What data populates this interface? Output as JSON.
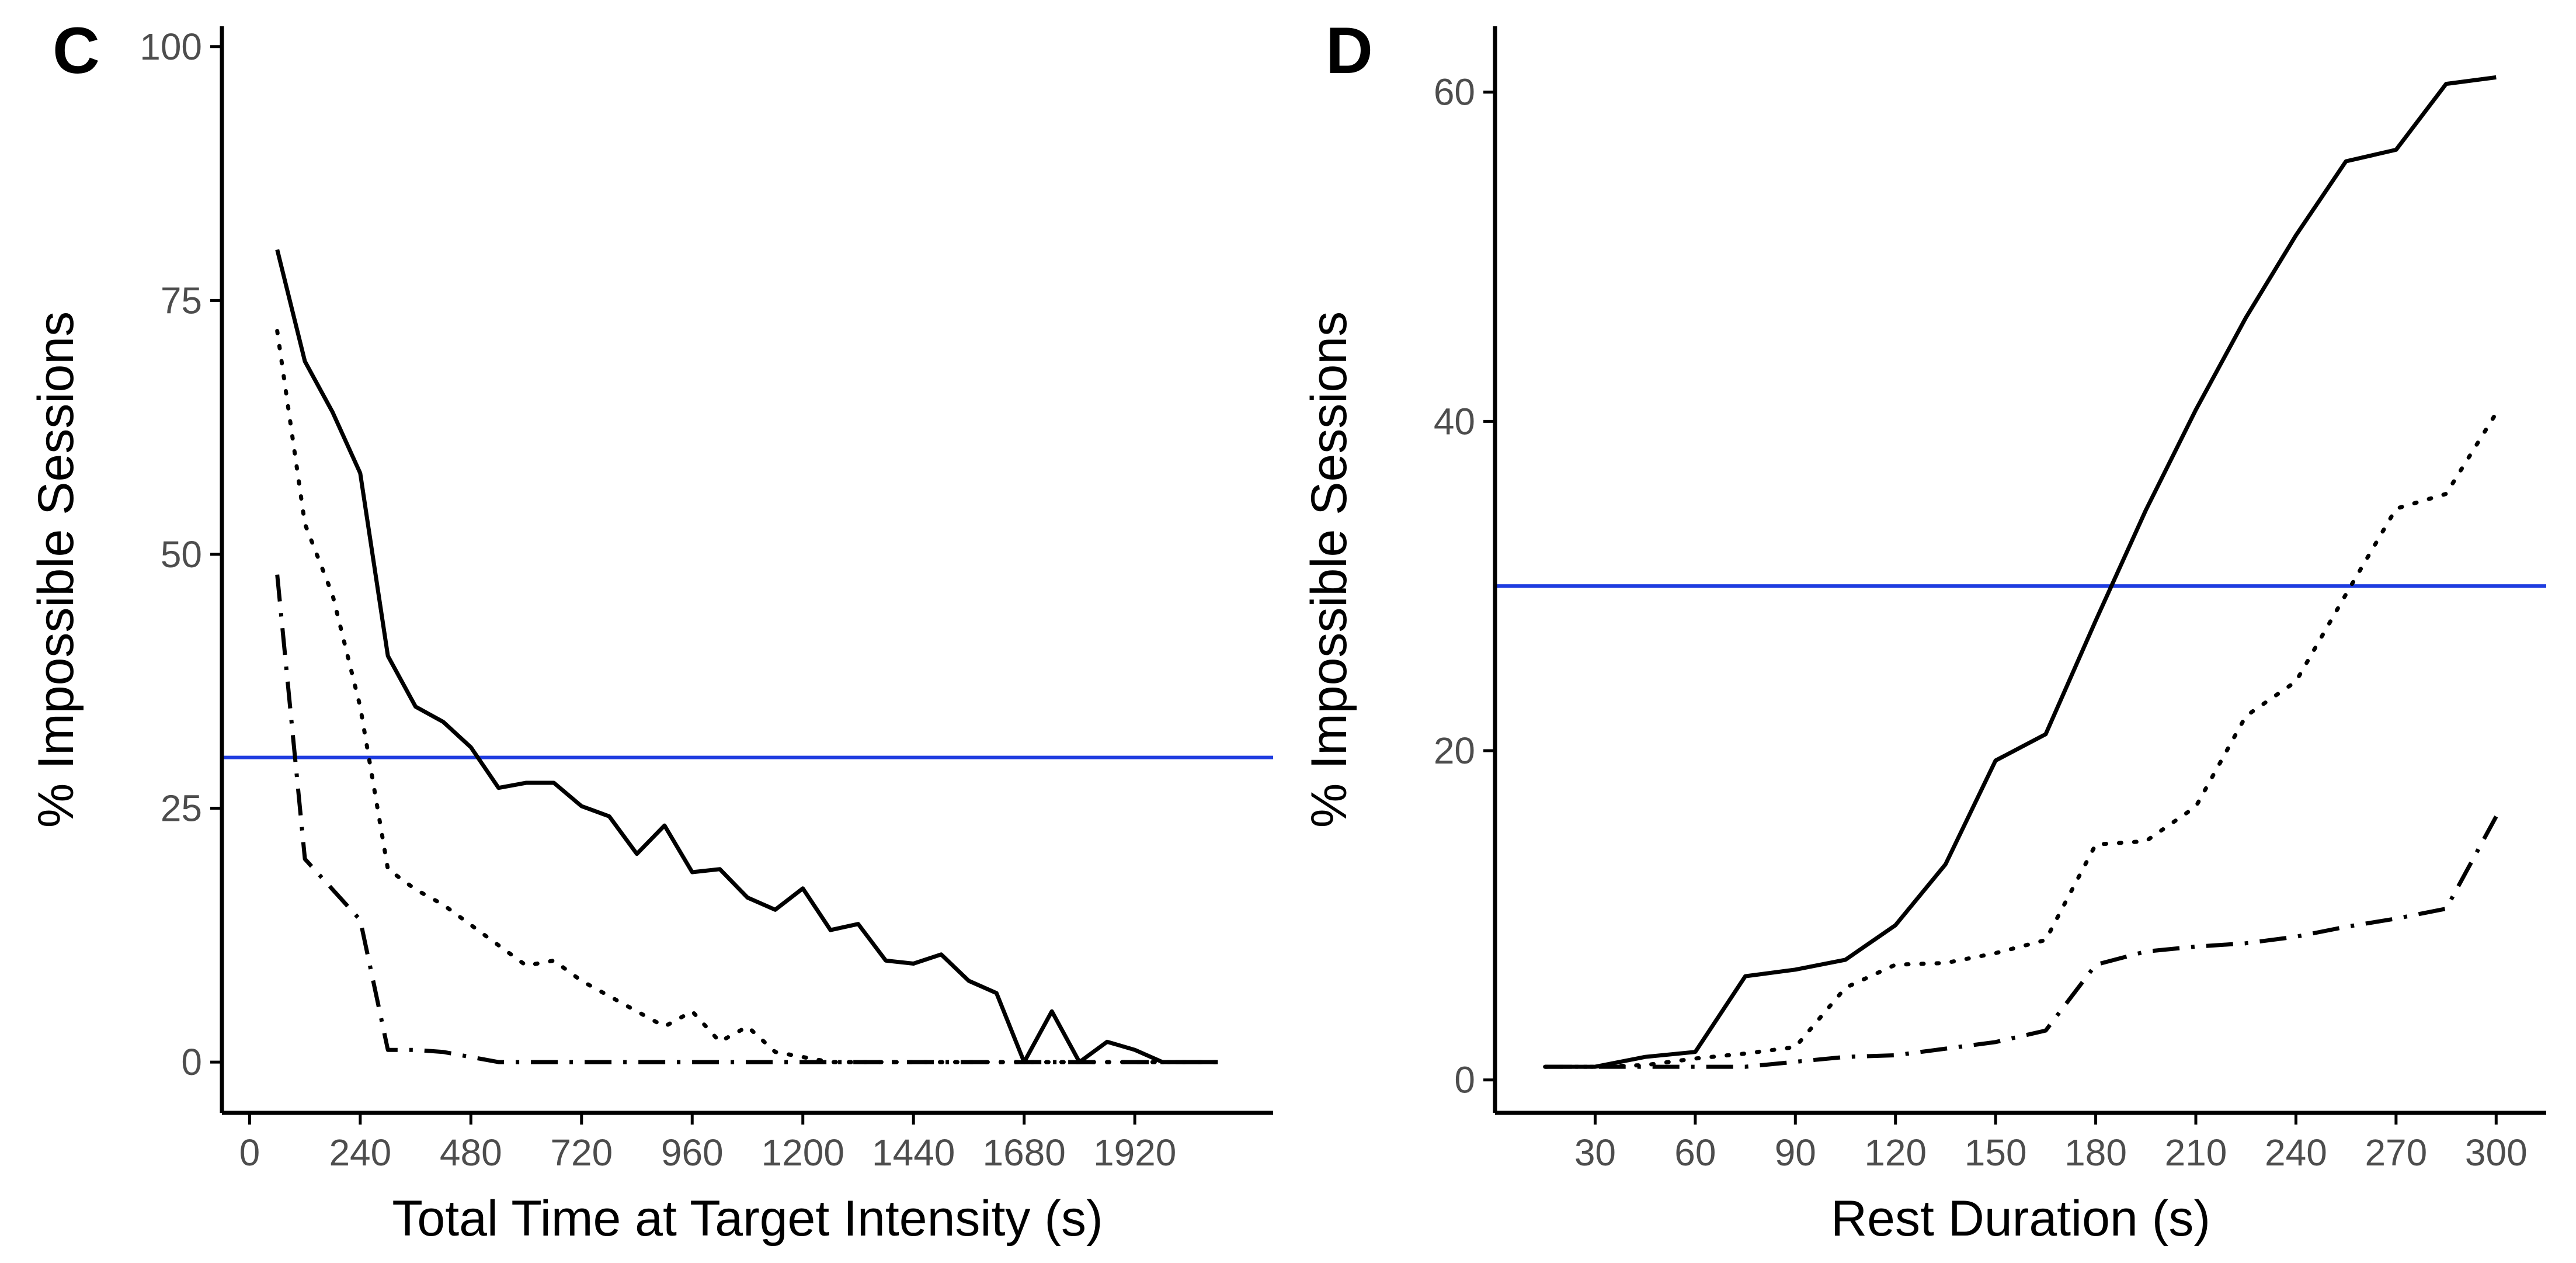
{
  "colors": {
    "reference": "#1f3de0",
    "series": "#000000",
    "tick_text": "#4d4d4d"
  },
  "chart_data": [
    {
      "type": "line",
      "panel": "C",
      "xlabel": "Total Time at Target Intensity (s)",
      "ylabel": "% Impossible Sessions",
      "xlim": [
        -60,
        2220
      ],
      "ylim": [
        -5,
        102
      ],
      "xticks": [
        0,
        240,
        480,
        720,
        960,
        1200,
        1440,
        1680,
        1920
      ],
      "xtick_labels": [
        "0",
        "240",
        "480",
        "720",
        "960",
        "1200",
        "1440",
        "1680",
        "1920"
      ],
      "yticks": [
        0,
        25,
        50,
        75,
        100
      ],
      "ytick_labels": [
        "0",
        "25",
        "50",
        "75",
        "100"
      ],
      "reference_line": {
        "y": 30
      },
      "series": [
        {
          "name": "solid",
          "style": "solid",
          "x": [
            60,
            120,
            180,
            240,
            300,
            360,
            420,
            480,
            540,
            600,
            660,
            720,
            780,
            840,
            900,
            960,
            1020,
            1080,
            1140,
            1200,
            1260,
            1320,
            1380,
            1440,
            1500,
            1560,
            1620,
            1680,
            1740,
            1800,
            1860,
            1920,
            1980,
            2040,
            2100
          ],
          "values": [
            80,
            69,
            64,
            58,
            40,
            35,
            33.5,
            31,
            27,
            27.5,
            27.5,
            25.2,
            24.2,
            20.5,
            23.3,
            18.7,
            19,
            16.2,
            15,
            17.1,
            13,
            13.6,
            10,
            9.7,
            10.6,
            8,
            6.8,
            0,
            5,
            0,
            2,
            1.2,
            0,
            0,
            0
          ]
        },
        {
          "name": "dotted",
          "style": "dotted",
          "x": [
            60,
            120,
            180,
            240,
            300,
            360,
            420,
            480,
            540,
            600,
            660,
            720,
            780,
            840,
            900,
            960,
            1020,
            1080,
            1140,
            1200,
            1260,
            1320,
            1380,
            1440,
            1500,
            1560,
            1620,
            1680,
            1740,
            1800,
            1860,
            1920,
            1980,
            2040,
            2100
          ],
          "values": [
            72,
            53,
            46,
            35,
            19,
            17,
            15.5,
            13.5,
            11.5,
            9.5,
            10,
            8,
            6.5,
            5,
            3.5,
            5,
            2,
            3.5,
            1,
            0.5,
            0,
            0,
            0,
            0,
            0,
            0,
            0,
            0,
            0,
            0,
            0,
            0,
            0,
            0,
            0
          ]
        },
        {
          "name": "dash-dot",
          "style": "dashdot",
          "x": [
            60,
            120,
            180,
            240,
            300,
            360,
            420,
            480,
            540,
            600,
            660,
            720,
            780,
            840,
            900,
            960,
            1020,
            1080,
            1140,
            1200,
            1260,
            1320,
            1380,
            1440,
            1500,
            1560,
            1620,
            1680,
            1740,
            1800,
            1860,
            1920,
            1980,
            2040,
            2100
          ],
          "values": [
            48,
            20,
            17,
            14,
            1.2,
            1.2,
            1,
            0.5,
            0,
            0,
            0,
            0,
            0,
            0,
            0,
            0,
            0,
            0,
            0,
            0,
            0,
            0,
            0,
            0,
            0,
            0,
            0,
            0,
            0,
            0,
            0,
            0,
            0,
            0,
            0
          ]
        }
      ]
    },
    {
      "type": "line",
      "panel": "D",
      "xlabel": "Rest Duration (s)",
      "ylabel": "% Impossible Sessions",
      "xlim": [
        0,
        315
      ],
      "ylim": [
        -2,
        64
      ],
      "xticks": [
        30,
        60,
        90,
        120,
        150,
        180,
        210,
        240,
        270,
        300
      ],
      "xtick_labels": [
        "30",
        "60",
        "90",
        "120",
        "150",
        "180",
        "210",
        "240",
        "270",
        "300"
      ],
      "yticks": [
        0,
        20,
        40,
        60
      ],
      "ytick_labels": [
        "0",
        "20",
        "40",
        "60"
      ],
      "reference_line": {
        "y": 30
      },
      "series": [
        {
          "name": "solid",
          "style": "solid",
          "x": [
            15,
            30,
            45,
            60,
            75,
            90,
            105,
            120,
            135,
            150,
            165,
            180,
            195,
            210,
            225,
            240,
            255,
            270,
            285,
            300
          ],
          "values": [
            0.8,
            0.8,
            1.4,
            1.7,
            6.3,
            6.7,
            7.3,
            9.4,
            13.1,
            19.4,
            21,
            27.9,
            34.6,
            40.7,
            46.3,
            51.3,
            55.8,
            56.5,
            60.5,
            60.9
          ]
        },
        {
          "name": "dotted",
          "style": "dotted",
          "x": [
            15,
            30,
            45,
            60,
            75,
            90,
            105,
            120,
            135,
            150,
            165,
            180,
            195,
            210,
            225,
            240,
            255,
            270,
            285,
            300
          ],
          "values": [
            0.8,
            0.8,
            0.9,
            1.3,
            1.6,
            2,
            5.6,
            7,
            7.1,
            7.7,
            8.5,
            14.3,
            14.5,
            16.6,
            22.1,
            24.2,
            29.5,
            34.7,
            35.6,
            40.5
          ]
        },
        {
          "name": "dash-dot",
          "style": "dashdot",
          "x": [
            15,
            30,
            45,
            60,
            75,
            90,
            105,
            120,
            135,
            150,
            165,
            180,
            195,
            210,
            225,
            240,
            255,
            270,
            285,
            300
          ],
          "values": [
            0.8,
            0.8,
            0.8,
            0.8,
            0.8,
            1.1,
            1.4,
            1.5,
            1.9,
            2.3,
            3,
            7,
            7.8,
            8.1,
            8.3,
            8.7,
            9.3,
            9.8,
            10.4,
            16
          ]
        }
      ]
    }
  ]
}
